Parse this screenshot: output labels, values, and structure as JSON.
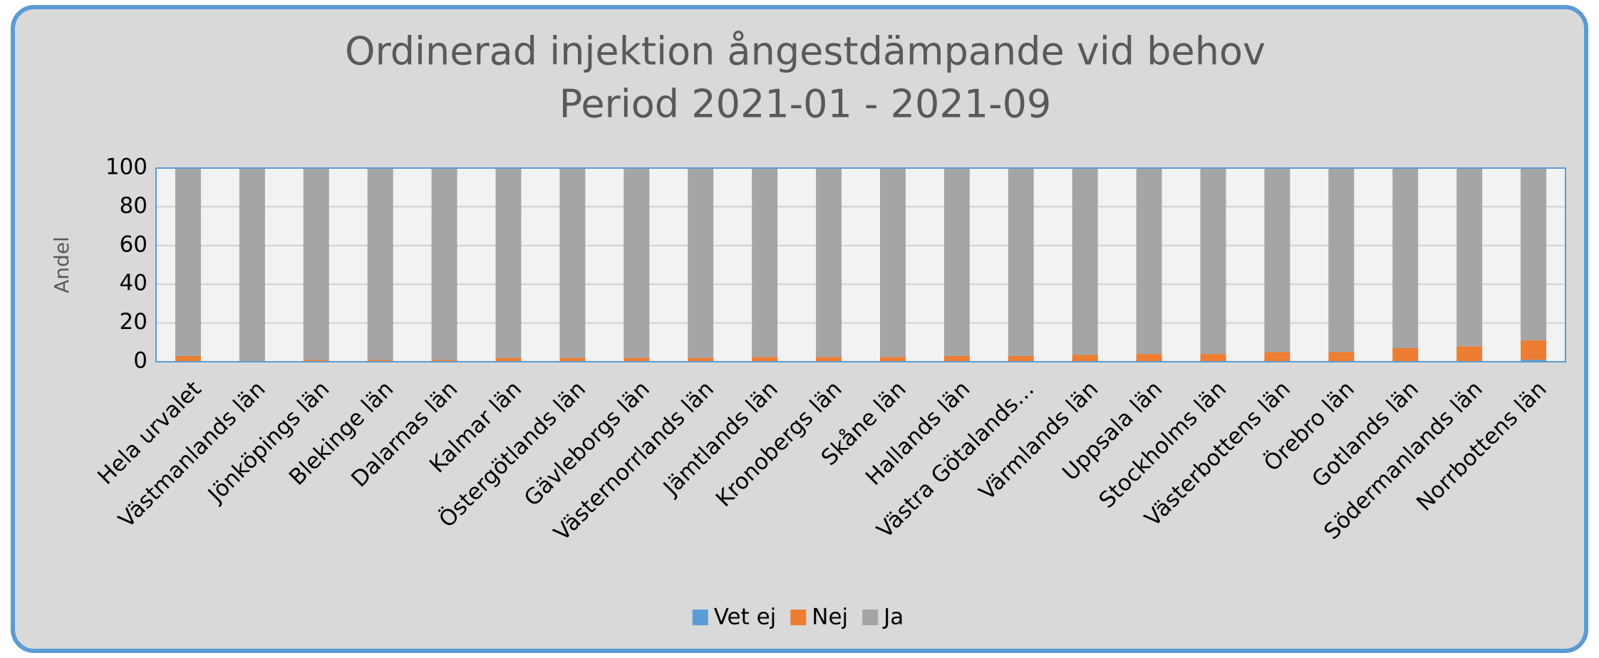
{
  "chart_data": {
    "type": "stacked_bar",
    "title": "Ordinerad injektion ångestdämpande vid behov",
    "subtitle": "Period 2021-01 - 2021-09",
    "y_label": "Andel",
    "categories": [
      "Hela urvalet",
      "Västmanlands län",
      "Jönköpings län",
      "Blekinge län",
      "Dalarnas län",
      "Kalmar län",
      "Östergötlands län",
      "Gävleborgs län",
      "Västernorrlands län",
      "Jämtlands län",
      "Kronobergs län",
      "Skåne län",
      "Hallands län",
      "Västra Götalands…",
      "Värmlands län",
      "Uppsala län",
      "Stockholms län",
      "Västerbottens län",
      "Örebro län",
      "Gotlands län",
      "Södermanlands län",
      "Norrbottens län"
    ],
    "series": [
      {
        "name": "Vet ej",
        "color": "#5b9bd5",
        "values": [
          0,
          0,
          0,
          0,
          0,
          0,
          0,
          0,
          0,
          0,
          0,
          0,
          0,
          0,
          0,
          0,
          0,
          0,
          0,
          0,
          0,
          1
        ]
      },
      {
        "name": "Nej",
        "color": "#ed7d31",
        "values": [
          3,
          0,
          1,
          1,
          1,
          2,
          2,
          2,
          2,
          2.5,
          2.5,
          2.5,
          3,
          3,
          3.5,
          4,
          4,
          5,
          5,
          7,
          8,
          10
        ]
      },
      {
        "name": "Ja",
        "color": "#a5a5a5",
        "values": [
          97,
          100,
          99,
          99,
          99,
          98,
          98,
          98,
          98,
          97.5,
          97.5,
          97.5,
          97,
          97,
          96.5,
          96,
          96,
          95,
          95,
          93,
          92,
          89
        ]
      }
    ],
    "ylim": [
      0,
      100
    ],
    "yticks": [
      0,
      20,
      40,
      60,
      80,
      100
    ],
    "grid": true,
    "legend": "bottom"
  }
}
